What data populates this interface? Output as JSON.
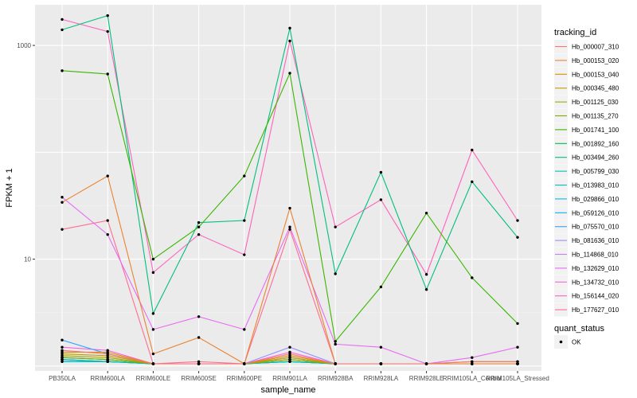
{
  "chart_data": {
    "type": "line",
    "xlabel": "sample_name",
    "ylabel": "FPKM + 1",
    "y_scale": "log10",
    "y_ticks": [
      10,
      1000
    ],
    "y_tick_labels": [
      "10",
      "1000"
    ],
    "ylim": [
      0.9,
      2400
    ],
    "grid": true,
    "legend_position": "right",
    "categories": [
      "PB350LA",
      "RRIM600LA",
      "RRIM600LE",
      "RRIM600SE",
      "RRIM600PE",
      "RRIM901LA",
      "RRIM928BA",
      "RRIM928LA",
      "RRIM928LE",
      "RRIM105LA_Control",
      "RRIM105LA_Stressed"
    ],
    "legend_title": "tracking_id",
    "series": [
      {
        "name": "Hb_000007_310",
        "color": "#F8766D",
        "values": [
          1.4,
          1.3,
          1.05,
          1.05,
          1.05,
          1.3,
          1.05,
          1.05,
          1.05,
          1.1,
          1.1
        ]
      },
      {
        "name": "Hb_000153_020",
        "color": "#EA8331",
        "values": [
          34,
          60,
          1.3,
          1.85,
          1.05,
          30,
          1.05,
          1.05,
          1.05,
          1.05,
          1.05
        ]
      },
      {
        "name": "Hb_000153_040",
        "color": "#D89000",
        "values": [
          1.35,
          1.35,
          1.05,
          1.05,
          1.05,
          1.25,
          1.05,
          1.05,
          1.05,
          1.1,
          1.1
        ]
      },
      {
        "name": "Hb_000345_480",
        "color": "#C09B00",
        "values": [
          1.3,
          1.25,
          1.05,
          1.05,
          1.05,
          1.2,
          1.05,
          1.05,
          1.05,
          1.05,
          1.05
        ]
      },
      {
        "name": "Hb_001125_030",
        "color": "#A3A500",
        "values": [
          1.25,
          1.2,
          1.05,
          1.05,
          1.05,
          1.15,
          1.05,
          1.05,
          1.05,
          1.05,
          1.05
        ]
      },
      {
        "name": "Hb_001135_270",
        "color": "#7CAE00",
        "values": [
          1.2,
          1.15,
          1.05,
          1.05,
          1.05,
          1.15,
          1.05,
          1.05,
          1.05,
          1.05,
          1.05
        ]
      },
      {
        "name": "Hb_001741_100",
        "color": "#39B600",
        "values": [
          580,
          540,
          10,
          20,
          60,
          550,
          1.7,
          5.5,
          27,
          6.7,
          2.5
        ]
      },
      {
        "name": "Hb_001892_160",
        "color": "#00BB4E",
        "values": [
          1.2,
          1.15,
          1.05,
          1.05,
          1.05,
          1.15,
          1.05,
          1.05,
          1.05,
          1.05,
          1.05
        ]
      },
      {
        "name": "Hb_003494_260",
        "color": "#00BF7D",
        "values": [
          1400,
          1900,
          3.1,
          22,
          23,
          1450,
          7.3,
          65,
          5.2,
          53,
          16
        ]
      },
      {
        "name": "Hb_005799_030",
        "color": "#00C1A3",
        "values": [
          1.15,
          1.1,
          1.05,
          1.05,
          1.05,
          1.1,
          1.05,
          1.05,
          1.05,
          1.05,
          1.05
        ]
      },
      {
        "name": "Hb_013983_010",
        "color": "#00BFC4",
        "values": [
          1.1,
          1.1,
          1.05,
          1.05,
          1.05,
          1.1,
          1.05,
          1.05,
          1.05,
          1.05,
          1.05
        ]
      },
      {
        "name": "Hb_029866_010",
        "color": "#00BAE0",
        "values": [
          1.1,
          1.1,
          1.05,
          1.05,
          1.05,
          1.1,
          1.05,
          1.05,
          1.05,
          1.05,
          1.05
        ]
      },
      {
        "name": "Hb_059126_010",
        "color": "#00B0F6",
        "values": [
          1.15,
          1.1,
          1.05,
          1.05,
          1.05,
          1.1,
          1.05,
          1.05,
          1.05,
          1.05,
          1.05
        ]
      },
      {
        "name": "Hb_075570_010",
        "color": "#35A2FF",
        "values": [
          1.75,
          1.3,
          1.05,
          1.05,
          1.05,
          1.2,
          1.05,
          1.05,
          1.05,
          1.05,
          1.05
        ]
      },
      {
        "name": "Hb_081636_010",
        "color": "#9590FF",
        "values": [
          1.2,
          1.15,
          1.05,
          1.05,
          1.05,
          1.5,
          1.05,
          1.05,
          1.05,
          1.05,
          1.05
        ]
      },
      {
        "name": "Hb_114868_010",
        "color": "#C77CFF",
        "values": [
          1.15,
          1.1,
          1.05,
          1.05,
          1.05,
          1.1,
          1.05,
          1.05,
          1.05,
          1.05,
          1.05
        ]
      },
      {
        "name": "Hb_132629_010",
        "color": "#E76BF3",
        "values": [
          38,
          17,
          2.2,
          2.9,
          2.2,
          20,
          1.6,
          1.5,
          1.05,
          1.2,
          1.5
        ]
      },
      {
        "name": "Hb_134732_010",
        "color": "#FA62DB",
        "values": [
          1.5,
          1.4,
          1.05,
          1.05,
          1.05,
          1.35,
          1.05,
          1.05,
          1.05,
          1.05,
          1.05
        ]
      },
      {
        "name": "Hb_156144_020",
        "color": "#FF62BC",
        "values": [
          1750,
          1350,
          7.5,
          17,
          11,
          1100,
          20,
          36,
          7.2,
          105,
          23
        ]
      },
      {
        "name": "Hb_177627_010",
        "color": "#FF6C91",
        "values": [
          19,
          23,
          1.05,
          1.1,
          1.05,
          19,
          1.05,
          1.05,
          1.05,
          1.05,
          1.05
        ]
      }
    ],
    "shape_legend": {
      "title": "quant_status",
      "items": [
        "OK"
      ]
    }
  }
}
